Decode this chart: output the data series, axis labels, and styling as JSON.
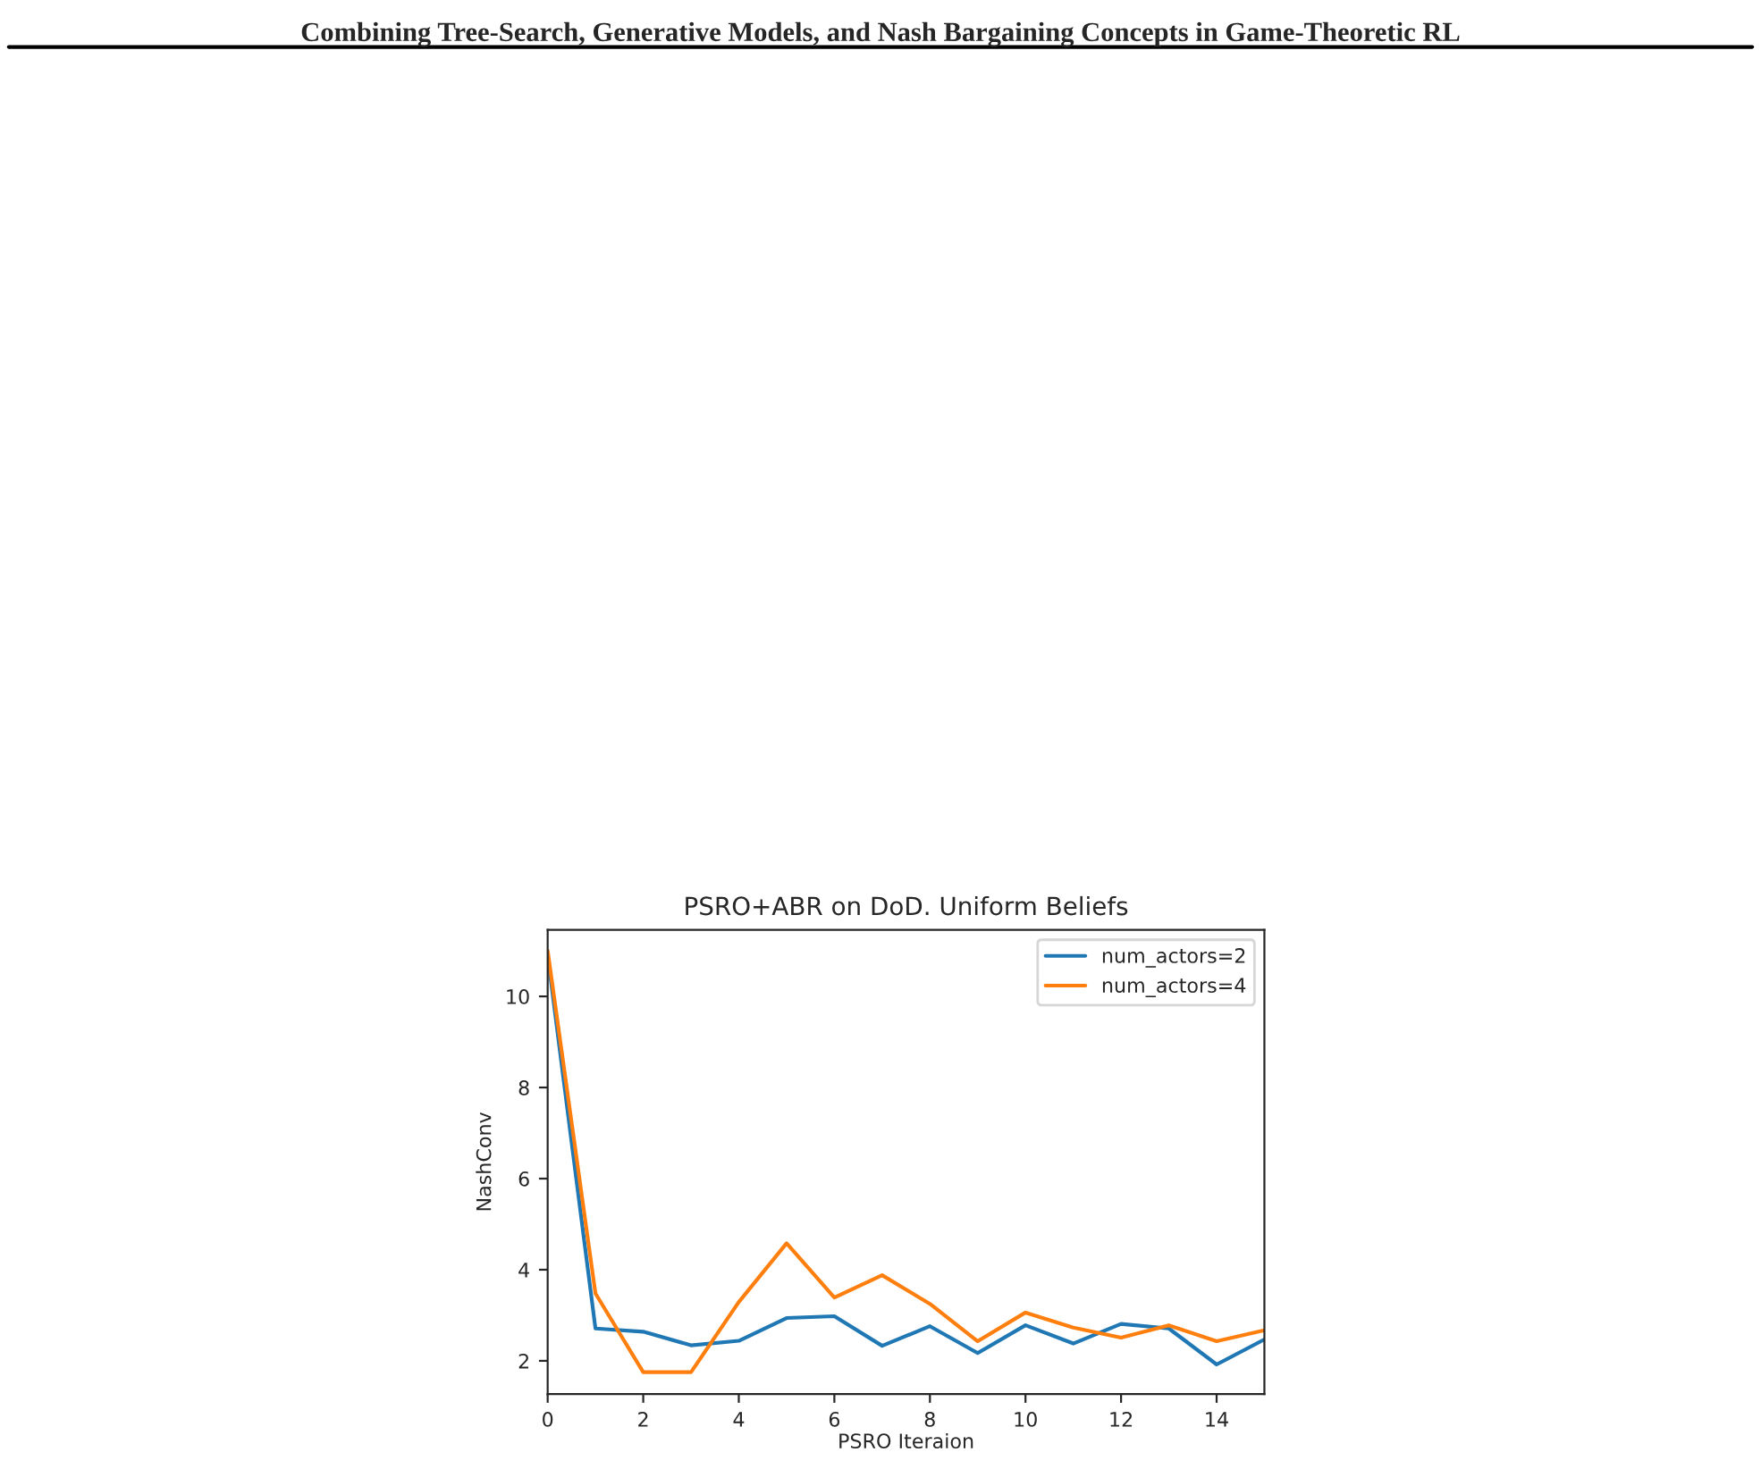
{
  "chart_data": {
    "type": "line",
    "title": "PSRO+ABR on DoD. Uniform Beliefs",
    "xlabel": "PSRO Iteraion",
    "ylabel": "NashConv",
    "annotations": [
      "Combining Tree-Search, Generative Models, and Nash Bargaining Concepts in Game-Theoretic RL"
    ],
    "x": [
      0,
      1,
      2,
      3,
      4,
      5,
      6,
      7,
      8,
      9,
      10,
      11,
      12,
      13,
      14,
      15
    ],
    "series": [
      {
        "name": "num_actors=2",
        "color": "#1f77b4",
        "values": [
          10.9,
          2.71,
          2.64,
          2.34,
          2.44,
          2.94,
          2.98,
          2.33,
          2.76,
          2.17,
          2.78,
          2.38,
          2.81,
          2.71,
          1.92,
          2.47
        ]
      },
      {
        "name": "num_actors=4",
        "color": "#ff7f0e",
        "values": [
          11.0,
          3.48,
          1.75,
          1.75,
          3.29,
          4.58,
          3.39,
          3.88,
          3.25,
          2.43,
          3.06,
          2.73,
          2.51,
          2.78,
          2.43,
          2.67
        ]
      }
    ],
    "xlim": [
      0,
      15
    ],
    "ylim": [
      1.27,
      11.46
    ],
    "xticks": [
      0,
      2,
      4,
      6,
      8,
      10,
      12,
      14
    ],
    "yticks": [
      2,
      4,
      6,
      8,
      10
    ],
    "legend": "top right",
    "grid": false
  }
}
